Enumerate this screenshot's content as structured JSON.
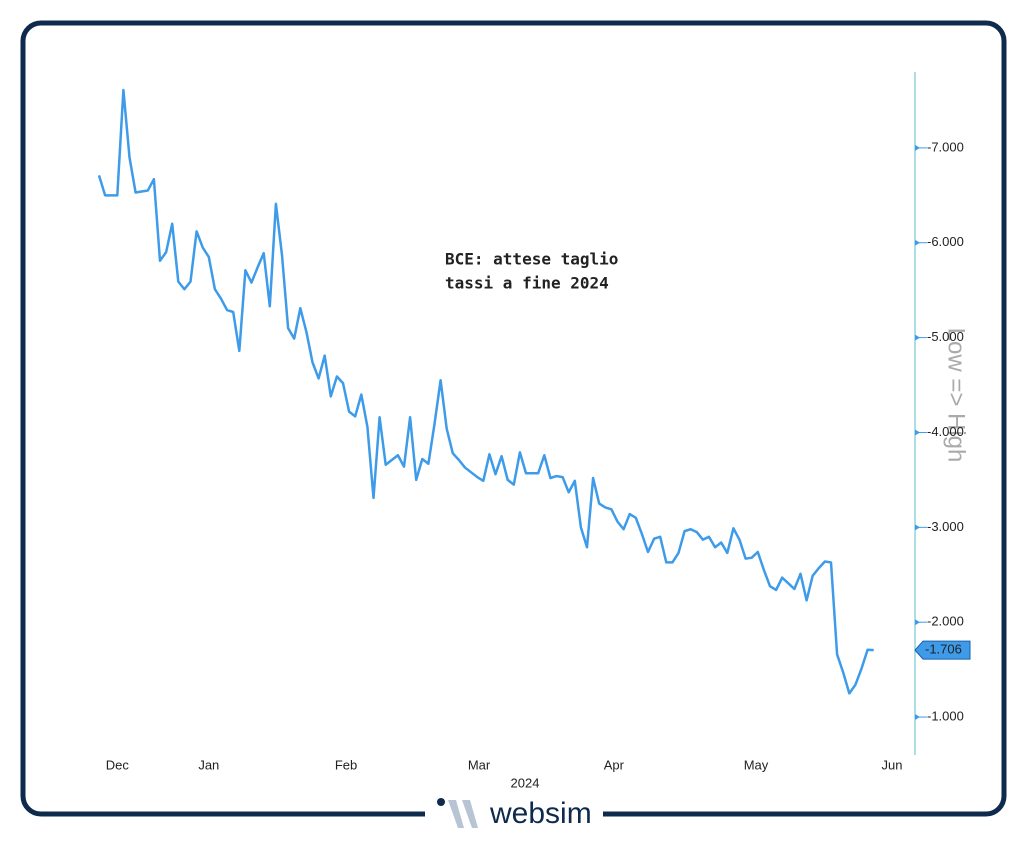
{
  "chart_data": {
    "type": "line",
    "title": [
      "BCE: attese taglio",
      "tassi a fine 2024"
    ],
    "x_label": "2024",
    "y_label": "Low => High",
    "watermark": "websim",
    "invert_y": true,
    "color": "#3d9be9",
    "values": [
      -6.71,
      -6.5,
      -6.5,
      -6.5,
      -7.61,
      -6.9,
      -6.53,
      -6.54,
      -6.55,
      -6.67,
      -5.81,
      -5.9,
      -6.2,
      -5.59,
      -5.51,
      -5.59,
      -6.12,
      -5.95,
      -5.85,
      -5.51,
      -5.41,
      -5.29,
      -5.27,
      -4.86,
      -5.71,
      -5.58,
      -5.74,
      -5.89,
      -5.33,
      -6.41,
      -5.87,
      -5.1,
      -4.99,
      -5.31,
      -5.06,
      -4.74,
      -4.57,
      -4.81,
      -4.38,
      -4.59,
      -4.52,
      -4.22,
      -4.17,
      -4.4,
      -4.06,
      -3.31,
      -4.16,
      -3.66,
      -3.71,
      -3.76,
      -3.64,
      -4.16,
      -3.5,
      -3.72,
      -3.67,
      -4.09,
      -4.55,
      -4.04,
      -3.78,
      -3.71,
      -3.63,
      -3.58,
      -3.53,
      -3.49,
      -3.77,
      -3.56,
      -3.75,
      -3.5,
      -3.45,
      -3.79,
      -3.57,
      -3.57,
      -3.57,
      -3.76,
      -3.52,
      -3.54,
      -3.53,
      -3.37,
      -3.49,
      -3.0,
      -2.79,
      -3.52,
      -3.25,
      -3.21,
      -3.19,
      -3.06,
      -2.98,
      -3.14,
      -3.1,
      -2.93,
      -2.74,
      -2.88,
      -2.9,
      -2.63,
      -2.63,
      -2.73,
      -2.96,
      -2.98,
      -2.95,
      -2.87,
      -2.9,
      -2.79,
      -2.84,
      -2.73,
      -2.99,
      -2.87,
      -2.67,
      -2.68,
      -2.74,
      -2.55,
      -2.38,
      -2.34,
      -2.47,
      -2.41,
      -2.35,
      -2.51,
      -2.23,
      -2.49,
      -2.57,
      -2.64,
      -2.63,
      -1.66,
      -1.47,
      -1.25,
      -1.34,
      -1.51,
      -1.71,
      -1.706
    ],
    "xlim": [
      0,
      130
    ],
    "xticks": [
      {
        "value": 3,
        "label": "Dec"
      },
      {
        "value": 18,
        "label": "Jan"
      },
      {
        "value": 40.5,
        "label": "Feb"
      },
      {
        "value": 62.3,
        "label": "Mar"
      },
      {
        "value": 84.4,
        "label": "Apr"
      },
      {
        "value": 107.7,
        "label": "May"
      },
      {
        "value": 130,
        "label": "Jun"
      }
    ],
    "ylim": [
      -7.8,
      -0.6
    ],
    "yticks": [
      {
        "value": -7,
        "label": "-7.000"
      },
      {
        "value": -6,
        "label": "-6.000"
      },
      {
        "value": -5,
        "label": "-5.000"
      },
      {
        "value": -4,
        "label": "-4.000"
      },
      {
        "value": -3,
        "label": "-3.000"
      },
      {
        "value": -2,
        "label": "-2.000"
      },
      {
        "value": -1,
        "label": "-1.000"
      }
    ]
  }
}
